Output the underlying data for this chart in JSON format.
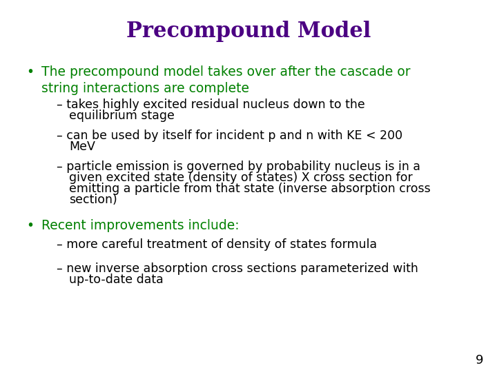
{
  "title": "Precompound Model",
  "title_color": "#4B0082",
  "title_fontsize": 22,
  "background_color": "#ffffff",
  "bullet1_text": "The precompound model takes over after the cascade or\nstring interactions are complete",
  "bullet1_color": "#008000",
  "bullet1_fontsize": 13.5,
  "sub1_line1": "– takes highly excited residual nucleus down to the",
  "sub1_line2": "   equilibrium stage",
  "sub2_line1": "– can be used by itself for incident p and n with KE < 200",
  "sub2_line2": "   MeV",
  "sub3_line1": "– particle emission is governed by probability nucleus is in a",
  "sub3_line2": "   given excited state (density of states) X cross section for",
  "sub3_line3": "   emitting a particle from that state (inverse absorption cross",
  "sub3_line4": "   section)",
  "sub_color": "#000000",
  "sub_fontsize": 12.5,
  "bullet2_text": "Recent improvements include:",
  "bullet2_color": "#008000",
  "bullet2_fontsize": 13.5,
  "sub4_text": "– more careful treatment of density of states formula",
  "sub5_line1": "– new inverse absorption cross sections parameterized with",
  "sub5_line2": "   up-to-date data",
  "page_number": "9",
  "page_color": "#000000",
  "page_fontsize": 13
}
